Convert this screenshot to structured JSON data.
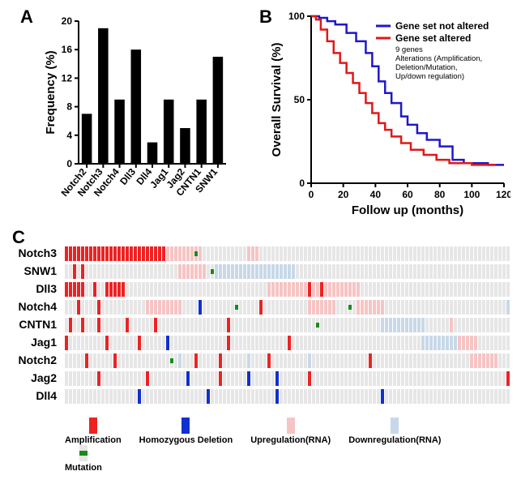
{
  "panelA": {
    "label": "A",
    "type": "bar",
    "ylabel": "Frequency (%)",
    "ylim": [
      0,
      20
    ],
    "ytick_step": 4,
    "categories": [
      "Notch2",
      "Notch3",
      "Notch4",
      "Dll3",
      "Dll4",
      "Jag1",
      "Jag2",
      "CNTN1",
      "SNW1"
    ],
    "values": [
      7,
      19,
      9,
      16,
      3,
      9,
      5,
      9,
      15
    ],
    "bar_color": "#000000",
    "background_color": "#ffffff",
    "label_fontsize": 15,
    "tick_fontsize": 12,
    "bar_width": 0.62
  },
  "panelB": {
    "label": "B",
    "type": "survival",
    "xlabel": "Follow up (months)",
    "ylabel": "Overall Survival (%)",
    "xlim": [
      0,
      120
    ],
    "xtick_step": 20,
    "ylim": [
      0,
      100
    ],
    "ytick_step": 50,
    "series": [
      {
        "name": "Gene set not altered",
        "color": "#2018c8",
        "points": [
          [
            0,
            100
          ],
          [
            5,
            99
          ],
          [
            10,
            97
          ],
          [
            15,
            95
          ],
          [
            22,
            90
          ],
          [
            28,
            85
          ],
          [
            34,
            78
          ],
          [
            38,
            70
          ],
          [
            42,
            61
          ],
          [
            46,
            54
          ],
          [
            50,
            48
          ],
          [
            56,
            40
          ],
          [
            60,
            35
          ],
          [
            66,
            30
          ],
          [
            72,
            26
          ],
          [
            80,
            22
          ],
          [
            88,
            14
          ],
          [
            95,
            12
          ],
          [
            110,
            11
          ],
          [
            120,
            11
          ]
        ]
      },
      {
        "name": "Gene set altered",
        "color": "#e01818",
        "points": [
          [
            0,
            100
          ],
          [
            3,
            98
          ],
          [
            6,
            92
          ],
          [
            10,
            85
          ],
          [
            14,
            78
          ],
          [
            18,
            72
          ],
          [
            22,
            66
          ],
          [
            26,
            60
          ],
          [
            30,
            54
          ],
          [
            34,
            48
          ],
          [
            38,
            42
          ],
          [
            42,
            36
          ],
          [
            46,
            32
          ],
          [
            50,
            28
          ],
          [
            56,
            24
          ],
          [
            62,
            20
          ],
          [
            70,
            17
          ],
          [
            78,
            14
          ],
          [
            86,
            12
          ],
          [
            100,
            11
          ],
          [
            115,
            11
          ]
        ]
      }
    ],
    "legend_subtext": [
      "9 genes",
      "Alterations (Amplification,",
      "Deletion/Mutation,",
      "Up/down regulation)"
    ]
  },
  "panelC": {
    "label": "C",
    "type": "oncoprint",
    "n_samples": 110,
    "genes": [
      "Notch3",
      "SNW1",
      "Dll3",
      "Notch4",
      "CNTN1",
      "Jag1",
      "Notch2",
      "Jag2",
      "Dll4"
    ],
    "colors": {
      "none": "#e6e6e6",
      "amp": "#ee2222",
      "del": "#1030d0",
      "up": "#f6c4c4",
      "down": "#c8d8e8",
      "mut": "#1a8a1a"
    },
    "legend": [
      {
        "key": "amp",
        "label": "Amplification"
      },
      {
        "key": "del",
        "label": "Homozygous Deletion"
      },
      {
        "key": "up",
        "label": "Upregulation(RNA)"
      },
      {
        "key": "down",
        "label": "Downregulation(RNA)"
      },
      {
        "key": "mut",
        "label": "Mutation"
      }
    ],
    "alterations": {
      "Notch3": [
        {
          "range": [
            0,
            24
          ],
          "type": "amp"
        },
        {
          "range": [
            25,
            33
          ],
          "type": "up"
        },
        {
          "idx": 32,
          "type": "mut"
        },
        {
          "range": [
            45,
            47
          ],
          "type": "up"
        }
      ],
      "SNW1": [
        {
          "idx": 2,
          "type": "amp"
        },
        {
          "idx": 4,
          "type": "amp"
        },
        {
          "range": [
            28,
            34
          ],
          "type": "up"
        },
        {
          "idx": 36,
          "type": "mut"
        },
        {
          "range": [
            37,
            56
          ],
          "type": "down"
        }
      ],
      "Dll3": [
        {
          "range": [
            0,
            4
          ],
          "type": "amp"
        },
        {
          "idx": 7,
          "type": "amp"
        },
        {
          "range": [
            10,
            14
          ],
          "type": "amp"
        },
        {
          "range": [
            50,
            72
          ],
          "type": "up"
        },
        {
          "idx": 60,
          "type": "amp"
        },
        {
          "idx": 63,
          "type": "amp"
        }
      ],
      "Notch4": [
        {
          "idx": 3,
          "type": "amp"
        },
        {
          "idx": 8,
          "type": "amp"
        },
        {
          "range": [
            20,
            28
          ],
          "type": "up"
        },
        {
          "idx": 33,
          "type": "del"
        },
        {
          "idx": 42,
          "type": "mut"
        },
        {
          "idx": 48,
          "type": "amp"
        },
        {
          "range": [
            60,
            66
          ],
          "type": "up"
        },
        {
          "idx": 70,
          "type": "mut"
        },
        {
          "range": [
            72,
            78
          ],
          "type": "up"
        },
        {
          "idx": 109,
          "type": "down"
        }
      ],
      "CNTN1": [
        {
          "idx": 1,
          "type": "amp"
        },
        {
          "idx": 4,
          "type": "amp"
        },
        {
          "idx": 8,
          "type": "amp"
        },
        {
          "idx": 15,
          "type": "amp"
        },
        {
          "idx": 22,
          "type": "amp"
        },
        {
          "idx": 40,
          "type": "amp"
        },
        {
          "idx": 62,
          "type": "mut"
        },
        {
          "range": [
            78,
            88
          ],
          "type": "down"
        },
        {
          "idx": 95,
          "type": "up"
        }
      ],
      "Jag1": [
        {
          "idx": 0,
          "type": "amp"
        },
        {
          "idx": 10,
          "type": "amp"
        },
        {
          "idx": 18,
          "type": "amp"
        },
        {
          "idx": 25,
          "type": "del"
        },
        {
          "idx": 40,
          "type": "amp"
        },
        {
          "idx": 55,
          "type": "amp"
        },
        {
          "range": [
            88,
            96
          ],
          "type": "down"
        },
        {
          "range": [
            97,
            101
          ],
          "type": "up"
        }
      ],
      "Notch2": [
        {
          "idx": 5,
          "type": "amp"
        },
        {
          "idx": 12,
          "type": "amp"
        },
        {
          "idx": 26,
          "type": "mut"
        },
        {
          "idx": 28,
          "type": "down"
        },
        {
          "idx": 32,
          "type": "amp"
        },
        {
          "idx": 38,
          "type": "amp"
        },
        {
          "idx": 45,
          "type": "down"
        },
        {
          "idx": 50,
          "type": "amp"
        },
        {
          "idx": 60,
          "type": "down"
        },
        {
          "idx": 75,
          "type": "amp"
        },
        {
          "range": [
            100,
            106
          ],
          "type": "up"
        }
      ],
      "Jag2": [
        {
          "idx": 8,
          "type": "amp"
        },
        {
          "idx": 20,
          "type": "amp"
        },
        {
          "idx": 30,
          "type": "del"
        },
        {
          "idx": 38,
          "type": "amp"
        },
        {
          "idx": 45,
          "type": "del"
        },
        {
          "idx": 52,
          "type": "del"
        },
        {
          "idx": 60,
          "type": "amp"
        },
        {
          "idx": 109,
          "type": "amp"
        }
      ],
      "Dll4": [
        {
          "idx": 18,
          "type": "del"
        },
        {
          "idx": 35,
          "type": "del"
        },
        {
          "idx": 52,
          "type": "del"
        },
        {
          "idx": 78,
          "type": "del"
        }
      ]
    }
  }
}
